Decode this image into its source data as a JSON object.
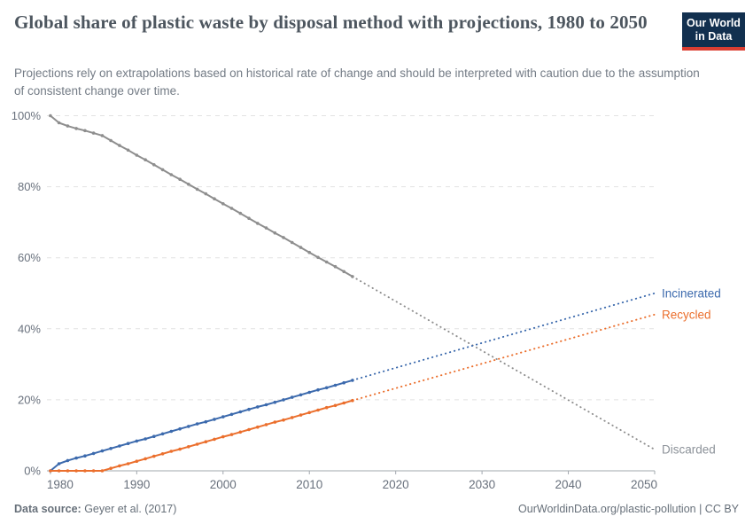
{
  "header": {
    "title": "Global share of plastic waste by disposal method with projections, 1980 to 2050",
    "subtitle": "Projections rely on extrapolations based on historical rate of change and should be interpreted with caution due to the assumption of consistent change over time.",
    "logo": {
      "line1": "Our World",
      "line2": "in Data",
      "bg": "#12304f",
      "accent": "#dc3e32"
    }
  },
  "footer": {
    "source_label": "Data source:",
    "source_value": " Geyer et al. (2017)",
    "link": "OurWorldinData.org/plastic-pollution | CC BY"
  },
  "chart_data": {
    "type": "line",
    "title": "Global share of plastic waste by disposal method with projections, 1980 to 2050",
    "xlabel": "",
    "ylabel": "",
    "ylim": [
      0,
      100
    ],
    "xlim": [
      1979.6,
      2050
    ],
    "grid": "dashed-horizontal",
    "y_ticks": [
      0,
      20,
      40,
      60,
      80,
      100
    ],
    "y_tick_suffix": "%",
    "x_ticks": [
      1980,
      1990,
      2000,
      2010,
      2020,
      2030,
      2040,
      2050
    ],
    "legend_position": "right-of-line-ends",
    "historical_years": [
      1980,
      1981,
      1982,
      1983,
      1984,
      1985,
      1986,
      1987,
      1988,
      1989,
      1990,
      1991,
      1992,
      1993,
      1994,
      1995,
      1996,
      1997,
      1998,
      1999,
      2000,
      2001,
      2002,
      2003,
      2004,
      2005,
      2006,
      2007,
      2008,
      2009,
      2010,
      2011,
      2012,
      2013,
      2014,
      2015
    ],
    "series": [
      {
        "name": "Discarded",
        "color": "#8e8e8e",
        "label_color": "#8c9299",
        "historical_values": [
          100,
          98.0,
          97.1,
          96.4,
          95.8,
          95.1,
          94.4,
          93.0,
          91.6,
          90.3,
          88.9,
          87.6,
          86.2,
          84.8,
          83.4,
          82.1,
          80.7,
          79.3,
          78.0,
          76.6,
          75.2,
          73.9,
          72.5,
          71.1,
          69.7,
          68.4,
          67.0,
          65.7,
          64.3,
          62.9,
          61.5,
          60.1,
          58.8,
          57.5,
          56.1,
          54.7
        ],
        "projection": {
          "years": [
            2015,
            2050
          ],
          "values": [
            54.7,
            6
          ]
        }
      },
      {
        "name": "Incinerated",
        "color": "#3c6aad",
        "label_color": "#3c6aad",
        "historical_values": [
          0,
          2.0,
          2.9,
          3.6,
          4.2,
          4.9,
          5.6,
          6.3,
          7.0,
          7.7,
          8.4,
          9.0,
          9.7,
          10.4,
          11.1,
          11.8,
          12.5,
          13.2,
          13.8,
          14.5,
          15.2,
          15.9,
          16.6,
          17.3,
          18.0,
          18.6,
          19.3,
          20.0,
          20.7,
          21.4,
          22.1,
          22.8,
          23.4,
          24.1,
          24.8,
          25.5
        ],
        "projection": {
          "years": [
            2015,
            2050
          ],
          "values": [
            25.5,
            50
          ]
        }
      },
      {
        "name": "Recycled",
        "color": "#eb6f2d",
        "label_color": "#eb6f2d",
        "historical_values": [
          0,
          0,
          0,
          0,
          0,
          0,
          0,
          0.7,
          1.4,
          2.0,
          2.7,
          3.4,
          4.1,
          4.8,
          5.5,
          6.1,
          6.8,
          7.5,
          8.2,
          8.9,
          9.6,
          10.2,
          10.9,
          11.6,
          12.3,
          13.0,
          13.7,
          14.3,
          15.0,
          15.7,
          16.4,
          17.1,
          17.8,
          18.4,
          19.1,
          19.8
        ],
        "projection": {
          "years": [
            2015,
            2050
          ],
          "values": [
            19.8,
            44
          ]
        }
      }
    ],
    "style": {
      "grid_color": "#e2e2e2",
      "axis_color": "#a2a8ae",
      "tick_label_color": "#68707c"
    }
  }
}
